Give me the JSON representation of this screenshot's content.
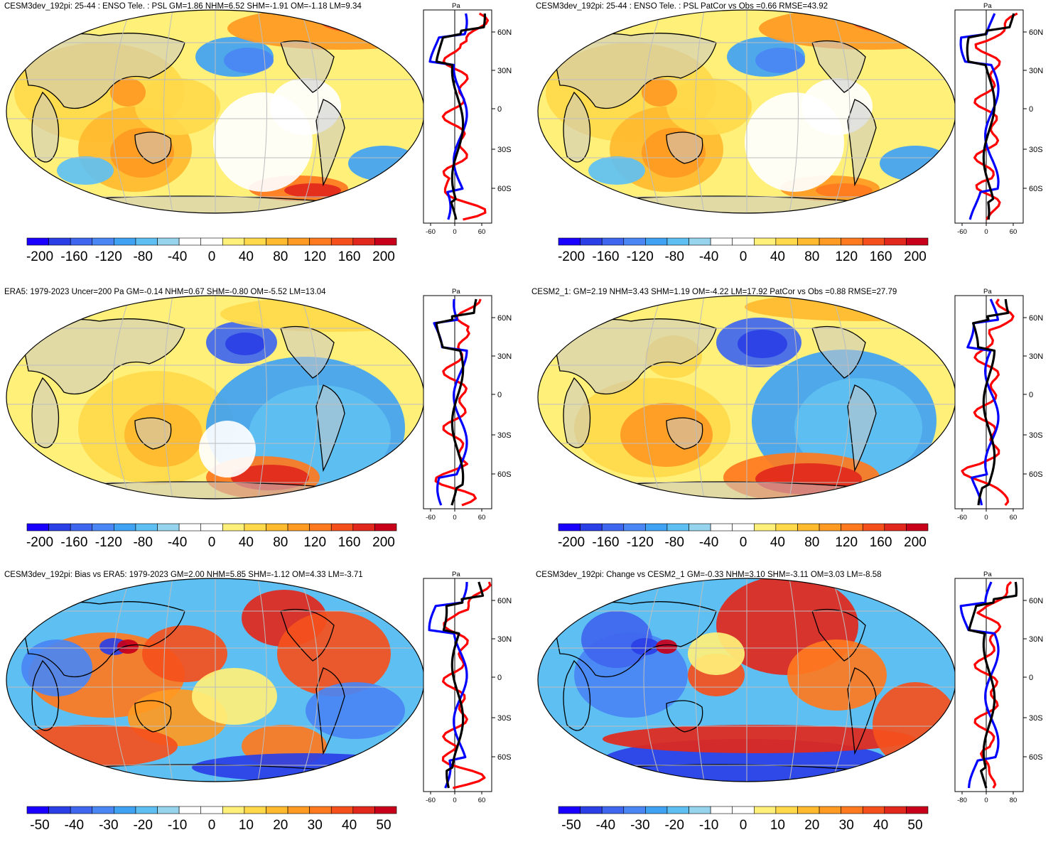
{
  "panels": [
    {
      "title": "CESM3dev_192pi: 25-44 : ENSO Tele. : PSL GM=1.86 NHM=6.52 SHM=-1.91 OM=-1.18 LM=9.34",
      "colorbar": [
        "-200",
        "-160",
        "-120",
        "-80",
        "-40",
        "0",
        "40",
        "80",
        "120",
        "160",
        "200"
      ],
      "profile_unit": "Pa",
      "profile_xticks": [
        "-60",
        "0",
        "60"
      ],
      "profile_yticks": [
        "60N",
        "30N",
        "0",
        "30S",
        "60S"
      ],
      "profile_colors": [
        "#ff0000",
        "#0000ff",
        "#000000"
      ]
    },
    {
      "title": "CESM3dev_192pi: 25-44 : ENSO Tele. : PSL PatCor vs Obs =0.66 RMSE=43.92",
      "colorbar": [
        "-200",
        "-160",
        "-120",
        "-80",
        "-40",
        "0",
        "40",
        "80",
        "120",
        "160",
        "200"
      ],
      "profile_unit": "Pa",
      "profile_xticks": [
        "-60",
        "0",
        "60"
      ],
      "profile_yticks": [
        "60N",
        "30N",
        "0",
        "30S",
        "60S"
      ],
      "profile_colors": [
        "#ff0000",
        "#0000ff",
        "#000000"
      ]
    },
    {
      "title": "ERA5: 1979-2023 Uncer=200 Pa GM=-0.14 NHM=0.67 SHM=-0.80 OM=-5.52 LM=13.04",
      "colorbar": [
        "-200",
        "-160",
        "-120",
        "-80",
        "-40",
        "0",
        "40",
        "80",
        "120",
        "160",
        "200"
      ],
      "profile_unit": "Pa",
      "profile_xticks": [
        "-60",
        "0",
        "60"
      ],
      "profile_yticks": [
        "60N",
        "30N",
        "0",
        "30S",
        "60S"
      ],
      "profile_colors": [
        "#ff0000",
        "#0000ff",
        "#000000"
      ]
    },
    {
      "title": "CESM2_1: GM=2.19 NHM=3.43 SHM=1.19 OM=-4.22 LM=17.92 PatCor vs Obs =0.88 RMSE=27.79",
      "colorbar": [
        "-200",
        "-160",
        "-120",
        "-80",
        "-40",
        "0",
        "40",
        "80",
        "120",
        "160",
        "200"
      ],
      "profile_unit": "Pa",
      "profile_xticks": [
        "-60",
        "0",
        "60"
      ],
      "profile_yticks": [
        "60N",
        "30N",
        "0",
        "30S",
        "60S"
      ],
      "profile_colors": [
        "#ff0000",
        "#0000ff",
        "#000000"
      ]
    },
    {
      "title": "CESM3dev_192pi: Bias vs ERA5: 1979-2023 GM=2.00 NHM=5.85 SHM=-1.12 OM=4.33 LM=-3.71",
      "colorbar": [
        "-50",
        "-40",
        "-30",
        "-20",
        "-10",
        "0",
        "10",
        "20",
        "30",
        "40",
        "50"
      ],
      "profile_unit": "Pa",
      "profile_xticks": [
        "-60",
        "0",
        "60"
      ],
      "profile_yticks": [
        "60N",
        "30N",
        "0",
        "30S",
        "60S"
      ],
      "profile_colors": [
        "#ff0000",
        "#0000ff",
        "#000000"
      ]
    },
    {
      "title": "CESM3dev_192pi: Change vs CESM2_1 GM=-0.33 NHM=3.10 SHM=-3.11 OM=3.03 LM=-8.58",
      "colorbar": [
        "-50",
        "-40",
        "-30",
        "-20",
        "-10",
        "0",
        "10",
        "20",
        "30",
        "40",
        "50"
      ],
      "profile_unit": "Pa",
      "profile_xticks": [
        "-80",
        "0",
        "80"
      ],
      "profile_yticks": [
        "60N",
        "30N",
        "0",
        "30S",
        "60S"
      ],
      "profile_colors": [
        "#ff0000",
        "#0000ff",
        "#000000"
      ]
    }
  ],
  "colormap": [
    "#1a00ff",
    "#2a3fe6",
    "#3f66ee",
    "#4a86f4",
    "#3fa2f2",
    "#5ec0f2",
    "#96d4ee",
    "#ffffff",
    "#ffffff",
    "#fff07a",
    "#ffd94a",
    "#ffba2e",
    "#ff9a22",
    "#ff7a1e",
    "#f5501c",
    "#e2281c",
    "#c8001a"
  ],
  "chart_data": [
    {
      "type": "heatmap",
      "title": "CESM3dev_192pi: 25-44 : ENSO Tele. : PSL GM=1.86 NHM=6.52 SHM=-1.91 OM=-1.18 LM=9.34",
      "colorbar_range": [
        -200,
        200
      ],
      "profile_series": [
        "red",
        "blue",
        "black"
      ]
    },
    {
      "type": "heatmap",
      "title": "CESM3dev_192pi: 25-44 : ENSO Tele. : PSL PatCor vs Obs =0.66 RMSE=43.92",
      "colorbar_range": [
        -200,
        200
      ],
      "profile_series": [
        "red",
        "blue",
        "black"
      ]
    },
    {
      "type": "heatmap",
      "title": "ERA5: 1979-2023 Uncer=200 Pa GM=-0.14 NHM=0.67 SHM=-0.80 OM=-5.52 LM=13.04",
      "colorbar_range": [
        -200,
        200
      ],
      "profile_series": [
        "red",
        "blue",
        "black"
      ]
    },
    {
      "type": "heatmap",
      "title": "CESM2_1: GM=2.19 NHM=3.43 SHM=1.19 OM=-4.22 LM=17.92 PatCor vs Obs =0.88 RMSE=27.79",
      "colorbar_range": [
        -200,
        200
      ],
      "profile_series": [
        "red",
        "blue",
        "black"
      ]
    },
    {
      "type": "heatmap",
      "title": "CESM3dev_192pi: Bias vs ERA5: 1979-2023 GM=2.00 NHM=5.85 SHM=-1.12 OM=4.33 LM=-3.71",
      "colorbar_range": [
        -50,
        50
      ],
      "profile_series": [
        "red",
        "blue",
        "black"
      ]
    },
    {
      "type": "heatmap",
      "title": "CESM3dev_192pi: Change vs CESM2_1 GM=-0.33 NHM=3.10 SHM=-3.11 OM=3.03 LM=-8.58",
      "colorbar_range": [
        -50,
        50
      ],
      "profile_series": [
        "red",
        "blue",
        "black"
      ]
    }
  ]
}
